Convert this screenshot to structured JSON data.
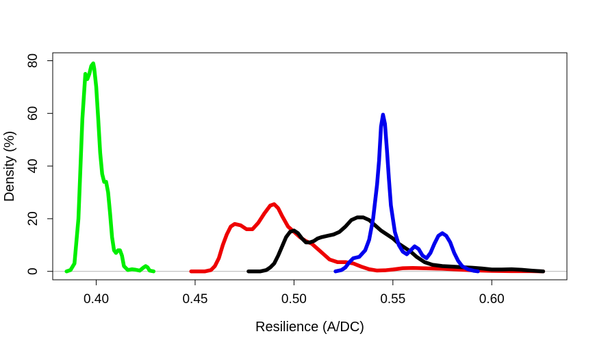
{
  "chart_data": {
    "type": "line",
    "title": "",
    "xlabel": "Resilience (A/DC)",
    "ylabel": "Density (%)",
    "xlim": [
      0.378,
      0.638
    ],
    "ylim": [
      -3.2,
      83.0
    ],
    "xticks": [
      0.4,
      0.45,
      0.5,
      0.55,
      0.6
    ],
    "xtick_labels": [
      "0.40",
      "0.45",
      "0.50",
      "0.55",
      "0.60"
    ],
    "yticks": [
      0,
      20,
      40,
      60,
      80
    ],
    "ytick_labels": [
      "0",
      "20",
      "40",
      "60",
      "80"
    ],
    "grid": false,
    "baseline": 0,
    "series": [
      {
        "color": "#00ee00",
        "points": [
          [
            0.385,
            0
          ],
          [
            0.387,
            0.5
          ],
          [
            0.389,
            3
          ],
          [
            0.391,
            20
          ],
          [
            0.393,
            58
          ],
          [
            0.3945,
            75
          ],
          [
            0.3955,
            73
          ],
          [
            0.3965,
            75
          ],
          [
            0.3975,
            78
          ],
          [
            0.3985,
            79
          ],
          [
            0.399,
            77
          ],
          [
            0.4,
            70
          ],
          [
            0.401,
            58
          ],
          [
            0.402,
            45
          ],
          [
            0.403,
            37
          ],
          [
            0.404,
            34
          ],
          [
            0.405,
            34
          ],
          [
            0.406,
            30
          ],
          [
            0.407,
            22
          ],
          [
            0.408,
            13
          ],
          [
            0.409,
            8
          ],
          [
            0.41,
            7
          ],
          [
            0.411,
            8
          ],
          [
            0.412,
            8
          ],
          [
            0.413,
            6
          ],
          [
            0.414,
            2
          ],
          [
            0.416,
            0.5
          ],
          [
            0.418,
            0.8
          ],
          [
            0.42,
            0.6
          ],
          [
            0.422,
            0.3
          ],
          [
            0.424,
            1.5
          ],
          [
            0.425,
            2.0
          ],
          [
            0.426,
            1.5
          ],
          [
            0.427,
            0.3
          ],
          [
            0.429,
            0
          ]
        ]
      },
      {
        "color": "#ee0000",
        "points": [
          [
            0.448,
            0
          ],
          [
            0.455,
            0
          ],
          [
            0.458,
            0.5
          ],
          [
            0.46,
            2
          ],
          [
            0.462,
            5
          ],
          [
            0.464,
            10
          ],
          [
            0.466,
            14
          ],
          [
            0.468,
            17
          ],
          [
            0.47,
            18
          ],
          [
            0.473,
            17.5
          ],
          [
            0.476,
            16
          ],
          [
            0.479,
            16
          ],
          [
            0.482,
            18.5
          ],
          [
            0.485,
            22
          ],
          [
            0.488,
            25
          ],
          [
            0.49,
            25.5
          ],
          [
            0.492,
            24
          ],
          [
            0.494,
            21
          ],
          [
            0.497,
            17
          ],
          [
            0.5,
            15
          ],
          [
            0.503,
            13
          ],
          [
            0.506,
            11.5
          ],
          [
            0.509,
            10.5
          ],
          [
            0.512,
            8.5
          ],
          [
            0.515,
            6.5
          ],
          [
            0.518,
            4.5
          ],
          [
            0.522,
            3.5
          ],
          [
            0.526,
            3.5
          ],
          [
            0.53,
            3
          ],
          [
            0.534,
            1.8
          ],
          [
            0.538,
            0.8
          ],
          [
            0.542,
            0.3
          ],
          [
            0.546,
            0.4
          ],
          [
            0.55,
            0.7
          ],
          [
            0.555,
            1.2
          ],
          [
            0.56,
            1.3
          ],
          [
            0.565,
            1.2
          ],
          [
            0.57,
            1.1
          ],
          [
            0.575,
            1
          ],
          [
            0.58,
            0.8
          ],
          [
            0.59,
            0.4
          ],
          [
            0.6,
            0.2
          ],
          [
            0.61,
            0.1
          ],
          [
            0.62,
            0.1
          ],
          [
            0.626,
            0
          ]
        ]
      },
      {
        "color": "#000000",
        "points": [
          [
            0.477,
            0
          ],
          [
            0.483,
            0
          ],
          [
            0.486,
            0.5
          ],
          [
            0.488,
            1.5
          ],
          [
            0.49,
            3
          ],
          [
            0.492,
            6
          ],
          [
            0.494,
            9.5
          ],
          [
            0.496,
            13
          ],
          [
            0.498,
            15
          ],
          [
            0.5,
            15.5
          ],
          [
            0.502,
            14.5
          ],
          [
            0.504,
            12.5
          ],
          [
            0.506,
            11
          ],
          [
            0.508,
            11
          ],
          [
            0.51,
            11.5
          ],
          [
            0.512,
            12.5
          ],
          [
            0.514,
            13
          ],
          [
            0.517,
            13.5
          ],
          [
            0.52,
            14
          ],
          [
            0.523,
            15
          ],
          [
            0.526,
            17
          ],
          [
            0.529,
            19.5
          ],
          [
            0.532,
            20.5
          ],
          [
            0.535,
            20.5
          ],
          [
            0.538,
            19.5
          ],
          [
            0.541,
            17.5
          ],
          [
            0.544,
            15.5
          ],
          [
            0.547,
            14
          ],
          [
            0.55,
            12.5
          ],
          [
            0.553,
            10.5
          ],
          [
            0.556,
            9
          ],
          [
            0.559,
            7.5
          ],
          [
            0.562,
            5.5
          ],
          [
            0.566,
            3.5
          ],
          [
            0.57,
            2.5
          ],
          [
            0.575,
            2
          ],
          [
            0.58,
            1.8
          ],
          [
            0.585,
            1.6
          ],
          [
            0.59,
            1.4
          ],
          [
            0.595,
            1.1
          ],
          [
            0.6,
            0.7
          ],
          [
            0.605,
            0.7
          ],
          [
            0.61,
            0.8
          ],
          [
            0.615,
            0.6
          ],
          [
            0.62,
            0.3
          ],
          [
            0.626,
            0
          ]
        ]
      },
      {
        "color": "#0000ee",
        "points": [
          [
            0.521,
            0
          ],
          [
            0.524,
            0.5
          ],
          [
            0.526,
            1.5
          ],
          [
            0.528,
            3.5
          ],
          [
            0.53,
            5
          ],
          [
            0.533,
            5.5
          ],
          [
            0.536,
            8
          ],
          [
            0.538,
            12
          ],
          [
            0.54,
            20
          ],
          [
            0.542,
            33
          ],
          [
            0.543,
            42
          ],
          [
            0.544,
            55
          ],
          [
            0.545,
            59.5
          ],
          [
            0.546,
            56
          ],
          [
            0.547,
            46
          ],
          [
            0.548,
            35
          ],
          [
            0.549,
            25
          ],
          [
            0.551,
            15
          ],
          [
            0.553,
            10
          ],
          [
            0.555,
            7.5
          ],
          [
            0.557,
            6.5
          ],
          [
            0.559,
            8
          ],
          [
            0.561,
            9.5
          ],
          [
            0.563,
            8.5
          ],
          [
            0.565,
            6
          ],
          [
            0.567,
            5
          ],
          [
            0.569,
            7
          ],
          [
            0.571,
            10.5
          ],
          [
            0.573,
            13.5
          ],
          [
            0.575,
            14.5
          ],
          [
            0.577,
            13.5
          ],
          [
            0.579,
            11
          ],
          [
            0.581,
            7
          ],
          [
            0.583,
            4
          ],
          [
            0.585,
            2
          ],
          [
            0.588,
            0.8
          ],
          [
            0.591,
            0.2
          ],
          [
            0.593,
            0
          ]
        ]
      }
    ]
  }
}
